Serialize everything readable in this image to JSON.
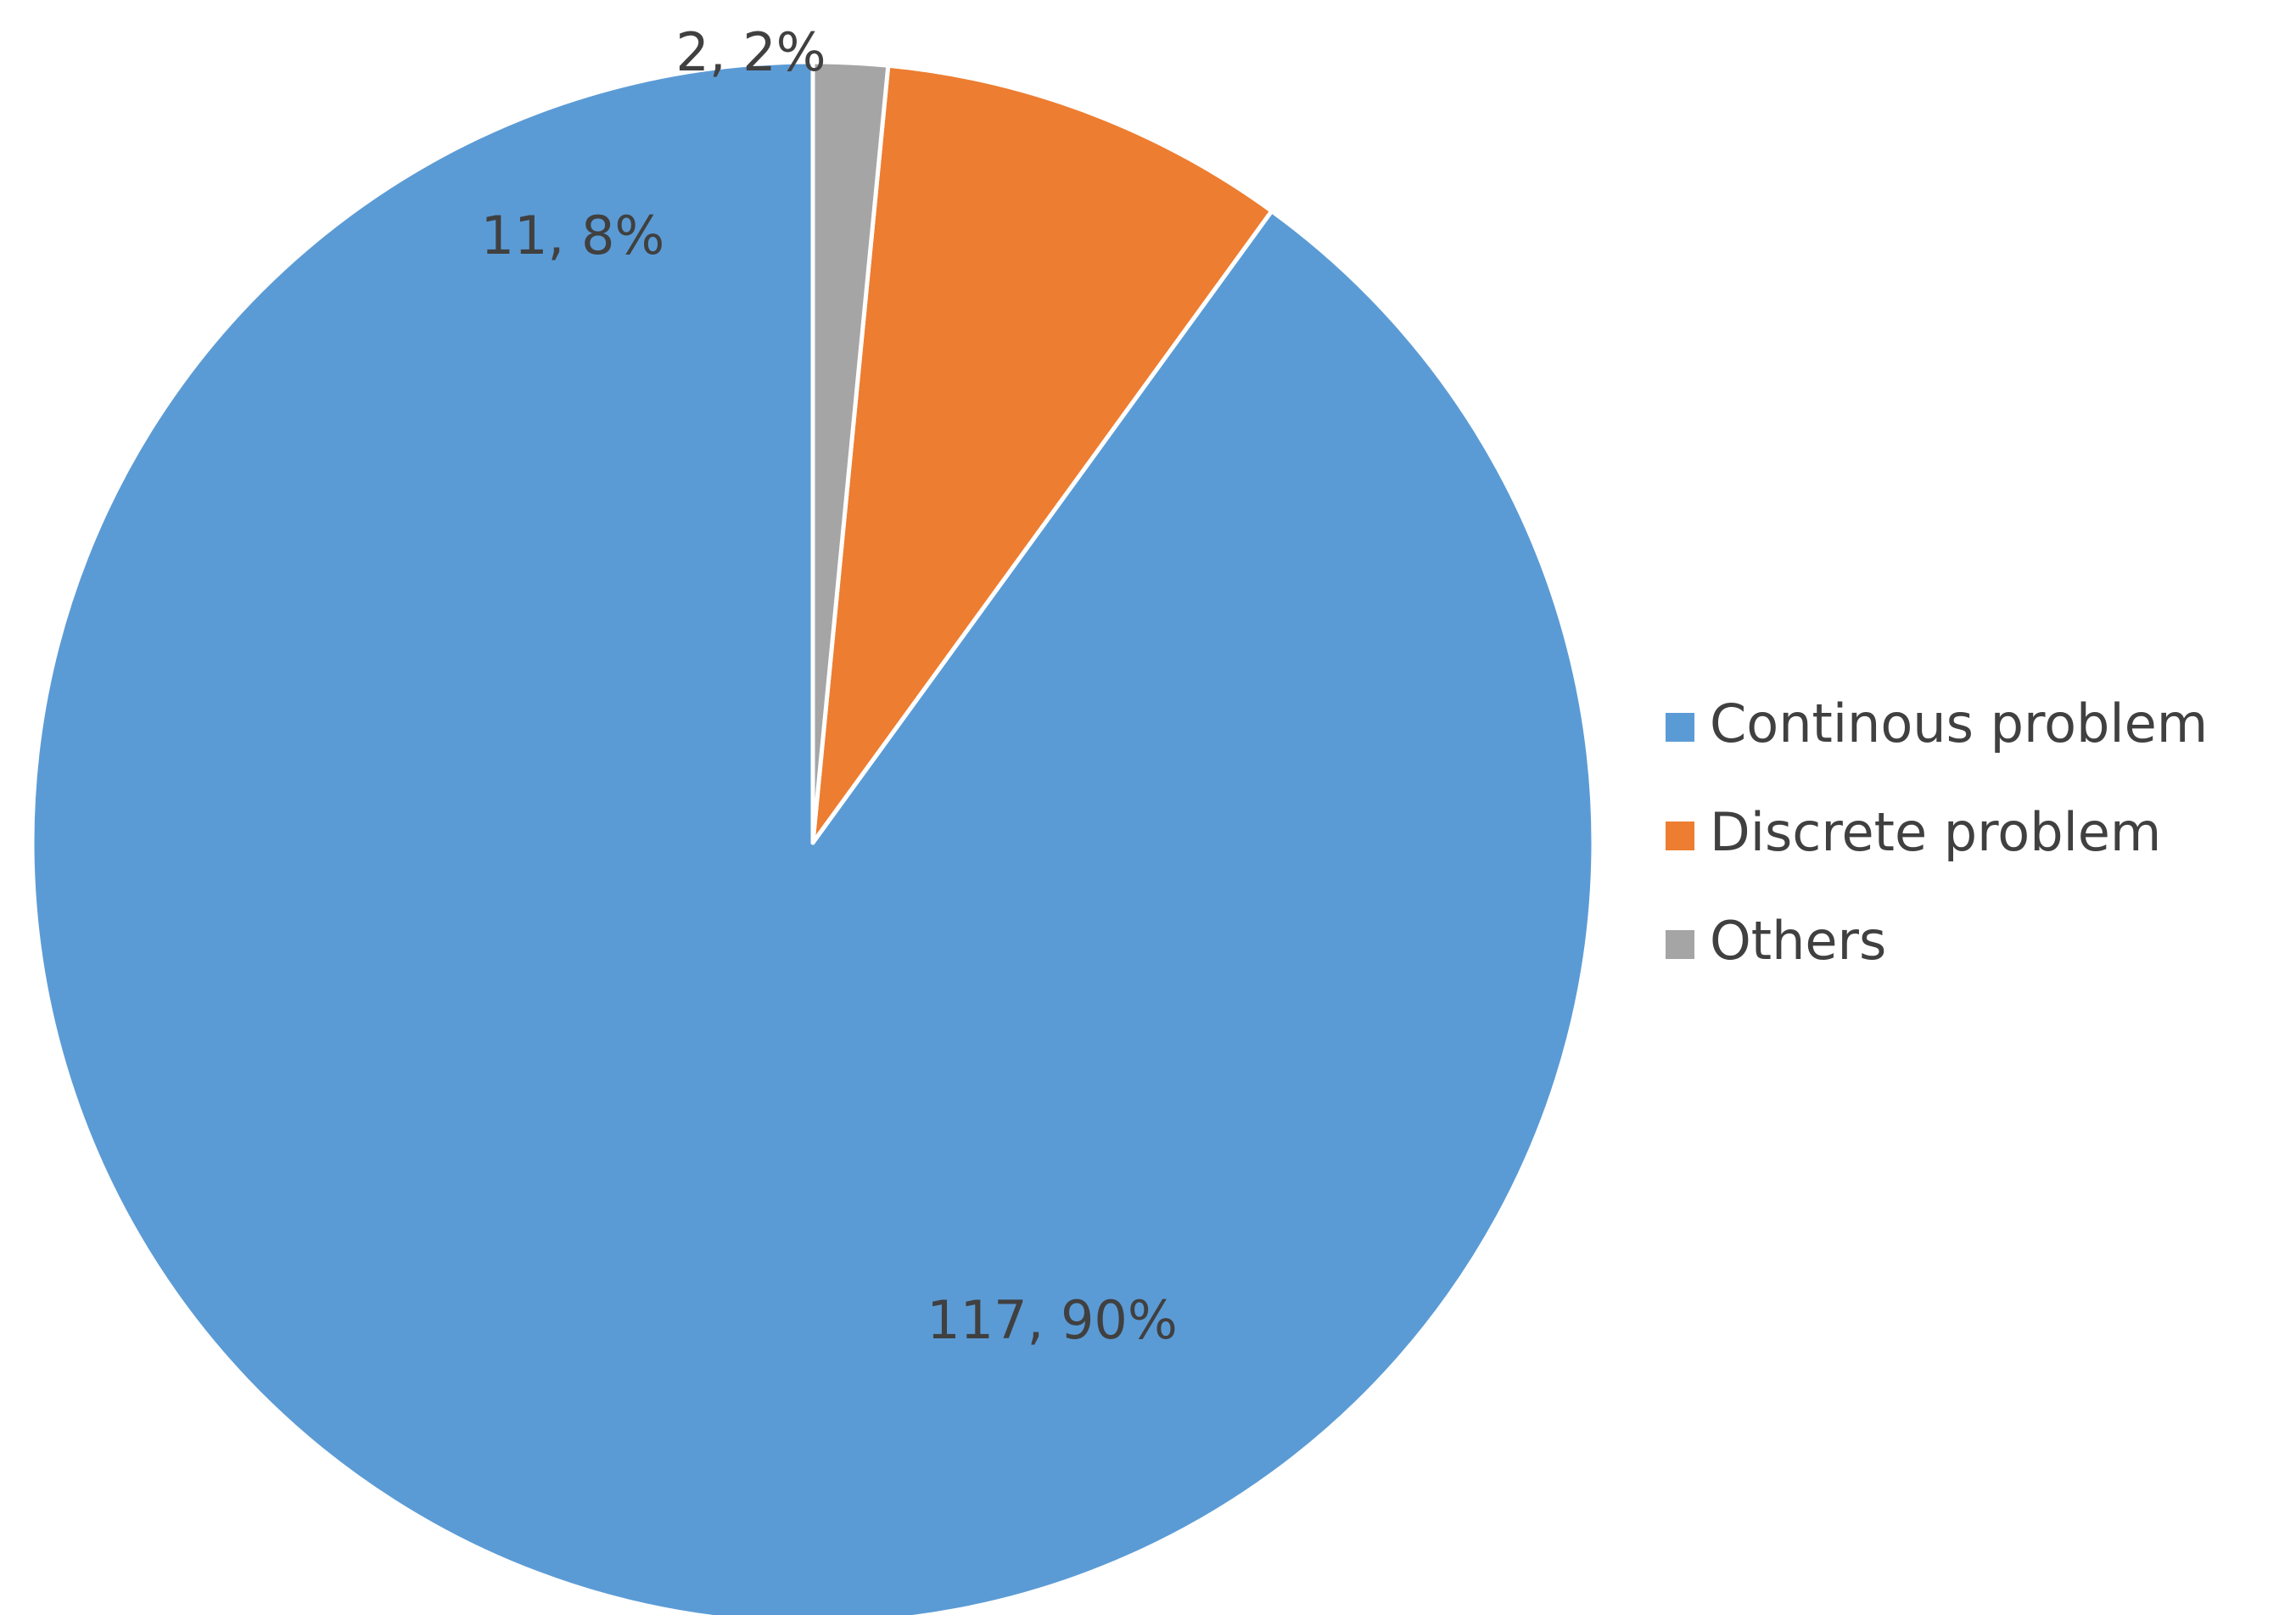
{
  "chart_data": {
    "type": "pie",
    "title": "",
    "categories": [
      "Continous problem",
      "Discrete problem",
      "Others"
    ],
    "values": [
      117,
      11,
      2
    ],
    "percent_labels": [
      "90%",
      "8%",
      "2%"
    ],
    "colors": [
      "#5b9bd5",
      "#ed7d31",
      "#a5a5a5"
    ],
    "data_labels": [
      "117, 90%",
      "11, 8%",
      "2, 2%"
    ],
    "start_angle_deg": 0,
    "direction": "clockwise",
    "legend": {
      "placement": "right",
      "entries": [
        "Continous problem",
        "Discrete problem",
        "Others"
      ]
    }
  }
}
